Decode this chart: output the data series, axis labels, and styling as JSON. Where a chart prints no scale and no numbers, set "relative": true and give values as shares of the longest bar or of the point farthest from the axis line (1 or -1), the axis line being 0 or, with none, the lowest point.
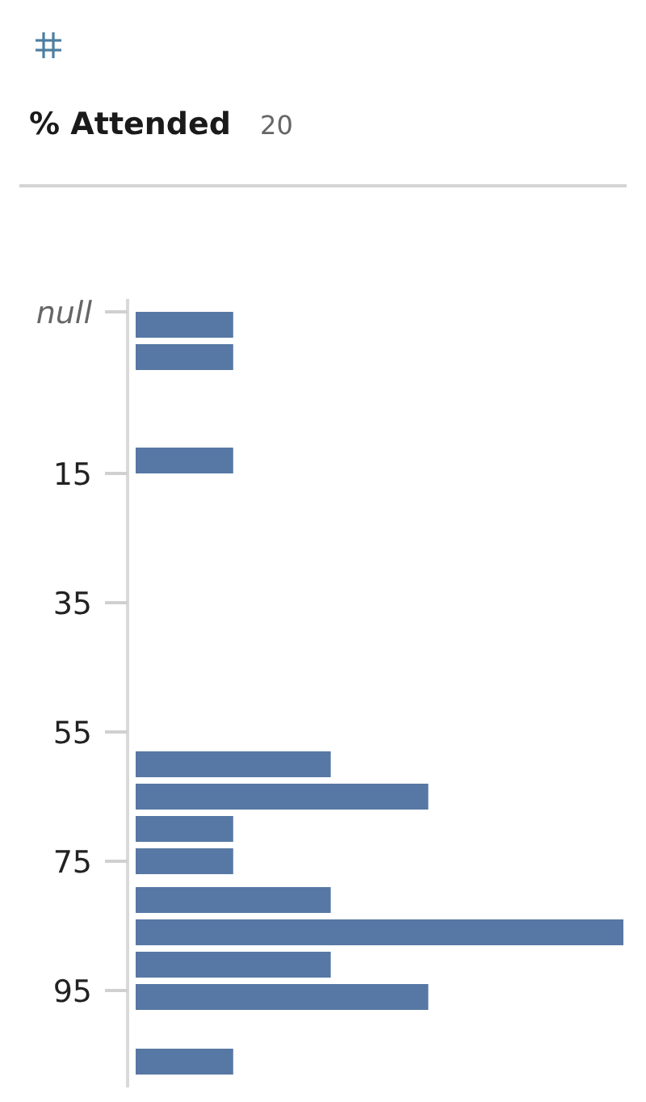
{
  "chart_data": {
    "type": "bar",
    "orientation": "horizontal",
    "relative": true,
    "title": "% Attended",
    "subtitle": "20",
    "color": "#5778a4",
    "x": [
      -8,
      -3,
      13,
      60,
      65,
      70,
      75,
      81,
      86,
      91,
      96,
      106
    ],
    "values": [
      0.2,
      0.2,
      0.2,
      0.4,
      0.6,
      0.2,
      0.2,
      0.4,
      1,
      0.4,
      0.6,
      0.2
    ],
    "ylim": [
      110,
      -12
    ],
    "yticks": [
      {
        "value": -10,
        "label": "null"
      },
      15,
      35,
      55,
      75,
      95
    ],
    "tick_labels": "y"
  }
}
